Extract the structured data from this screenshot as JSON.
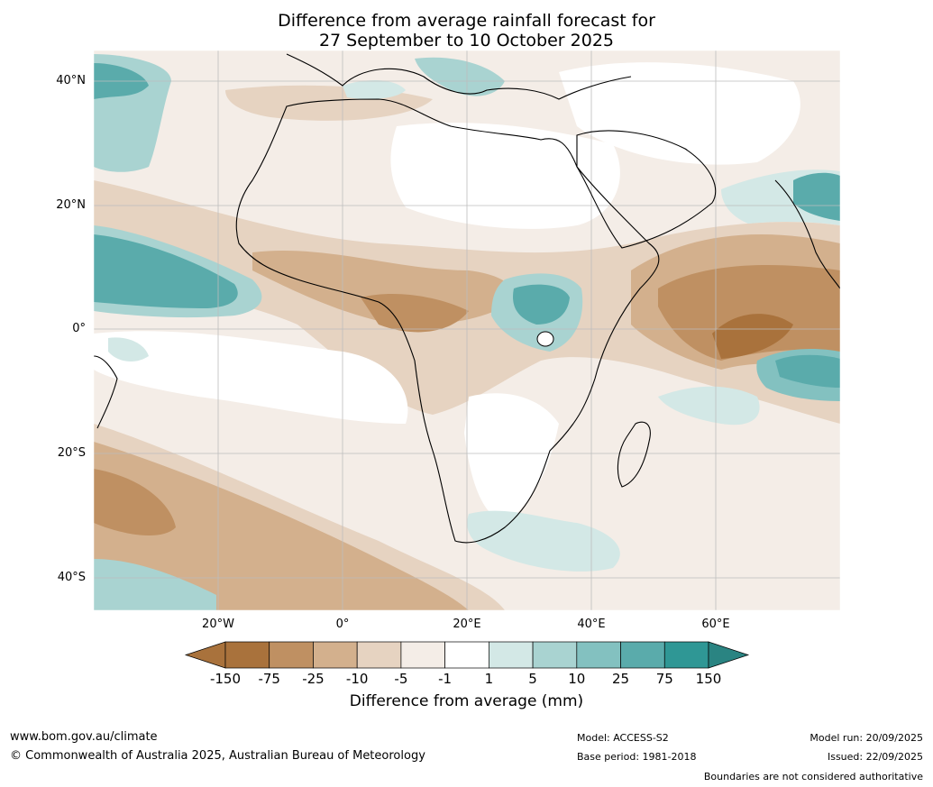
{
  "title": {
    "line1": "Difference from average rainfall forecast for",
    "line2": "27 September to 10 October 2025"
  },
  "map": {
    "lat_labels": [
      "40°N",
      "20°N",
      "0°",
      "20°S",
      "40°S"
    ],
    "lon_labels": [
      "20°W",
      "0°",
      "20°E",
      "40°E",
      "60°E"
    ]
  },
  "colorbar": {
    "ticks": [
      "-150",
      "-75",
      "-25",
      "-10",
      "-5",
      "-1",
      "1",
      "5",
      "10",
      "25",
      "75",
      "150"
    ],
    "colors": [
      "#a9723c",
      "#a9723c",
      "#bf9062",
      "#d3b08d",
      "#e6d3c1",
      "#f4ede7",
      "#ffffff",
      "#d3e8e6",
      "#a9d3d1",
      "#83c1c0",
      "#5aabab",
      "#2f9795",
      "#2a8482"
    ],
    "label": "Difference from average (mm)"
  },
  "footer": {
    "website": "www.bom.gov.au/climate",
    "copyright": "© Commonwealth of Australia 2025, Australian Bureau of Meteorology",
    "model": "Model: ACCESS-S2",
    "base_period": "Base period: 1981-2018",
    "model_run": "Model run: 20/09/2025",
    "issued": "Issued: 22/09/2025",
    "disclaimer": "Boundaries are not considered authoritative"
  }
}
